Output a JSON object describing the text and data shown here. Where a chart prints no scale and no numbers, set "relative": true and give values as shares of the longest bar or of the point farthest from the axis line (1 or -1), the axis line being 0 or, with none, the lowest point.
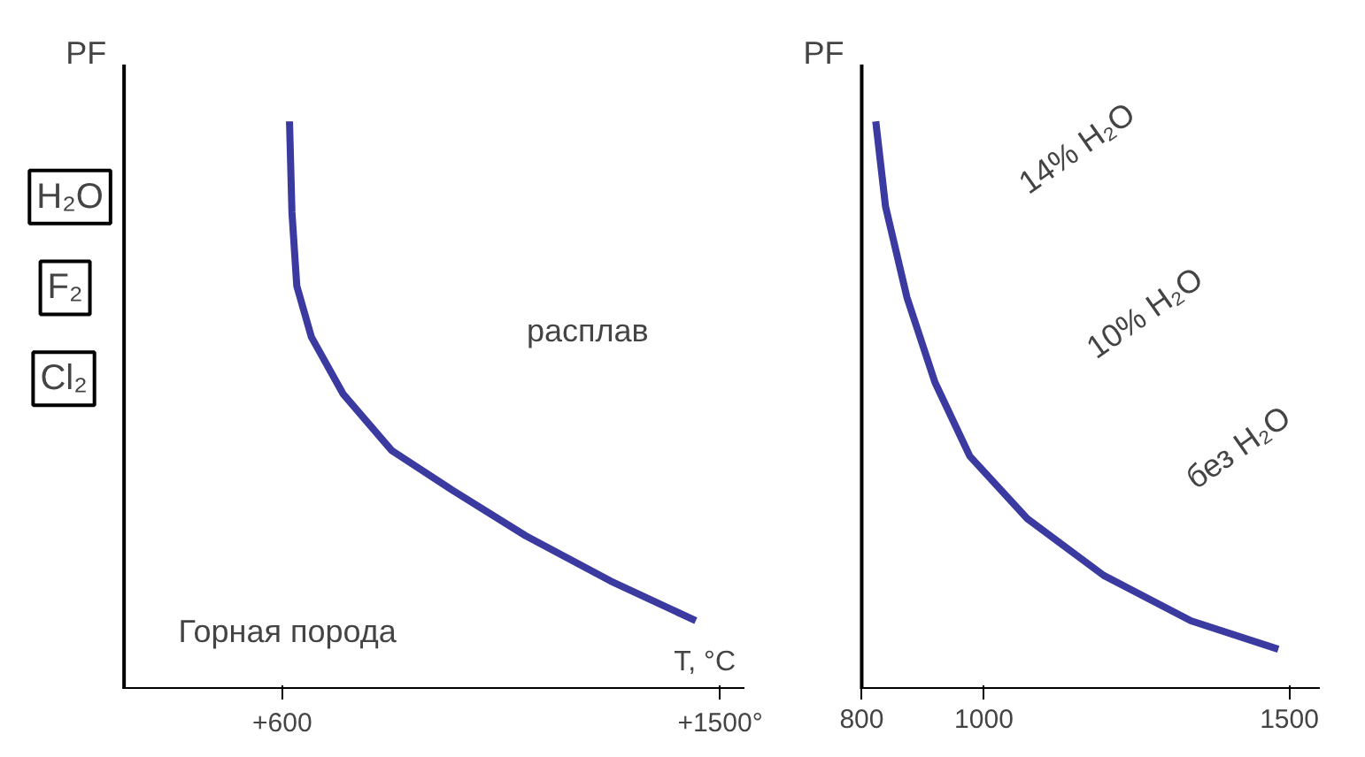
{
  "chart_data": [
    {
      "type": "line",
      "relative": true,
      "ylabel": "PF",
      "xlabel": "T, °C",
      "tick_labels": "x",
      "xlim": [
        275,
        1550
      ],
      "xticks": [
        {
          "value": 600,
          "label": "+600"
        },
        {
          "value": 1500,
          "label": "+1500°"
        }
      ],
      "x": [
        615,
        620,
        630,
        660,
        725,
        825,
        950,
        1100,
        1275,
        1450
      ],
      "series": [
        {
          "color": "#3a3aa0",
          "values": [
            1,
            0.84,
            0.71,
            0.62,
            0.52,
            0.42,
            0.35,
            0.27,
            0.19,
            0.12
          ]
        }
      ],
      "annotations": [
        "H₂O",
        "F₂",
        "Cl₂",
        "расплав",
        "Горная порода"
      ]
    },
    {
      "type": "line",
      "relative": true,
      "ylabel": "PF",
      "tick_labels": "x",
      "xlim": [
        800,
        1550
      ],
      "xticks": [
        800,
        1000,
        1500
      ],
      "x": [
        823,
        839,
        874,
        920,
        977,
        1071,
        1196,
        1339,
        1482
      ],
      "series": [
        {
          "color": "#3a3aa0",
          "values": [
            1,
            0.85,
            0.69,
            0.54,
            0.41,
            0.3,
            0.2,
            0.12,
            0.07
          ]
        }
      ],
      "annotations": [
        "14% H₂O",
        "10% H₂O",
        "без H₂O"
      ]
    }
  ]
}
